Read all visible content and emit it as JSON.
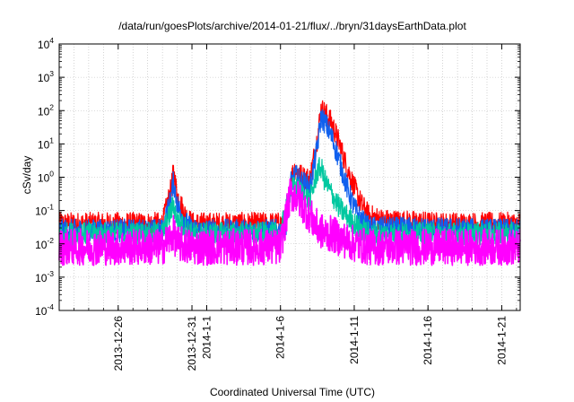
{
  "chart_data": {
    "type": "line",
    "title": "/data/run/goesPlots/archive/2014-01-21/flux/../bryn/31daysEarthData.plot",
    "xlabel": "Coordinated Universal Time (UTC)",
    "ylabel": "cSv/day",
    "yscale": "log",
    "ylim": [
      0.0001,
      10000
    ],
    "xlim": [
      "2013-12-22T00:00",
      "2014-01-22T06:00"
    ],
    "grid": true,
    "x_ticks": [
      "2013-12-26",
      "2013-12-31",
      "2014-1-1",
      "2014-1-6",
      "2014-1-11",
      "2014-1-16",
      "2014-1-21"
    ],
    "y_ticks": [
      {
        "base": "10",
        "exp": "-4"
      },
      {
        "base": "10",
        "exp": "-3"
      },
      {
        "base": "10",
        "exp": "-2"
      },
      {
        "base": "10",
        "exp": "-1"
      },
      {
        "base": "10",
        "exp": "0"
      },
      {
        "base": "10",
        "exp": "1"
      },
      {
        "base": "10",
        "exp": "2"
      },
      {
        "base": "10",
        "exp": "3"
      },
      {
        "base": "10",
        "exp": "4"
      }
    ],
    "series": [
      {
        "color": "#ff0000",
        "points": [
          [
            "2013-12-22",
            0.04
          ],
          [
            "2013-12-26",
            0.04
          ],
          [
            "2013-12-29",
            0.04
          ],
          [
            "2013-12-29T14:00",
            0.45
          ],
          [
            "2013-12-29T18:00",
            1.5
          ],
          [
            "2013-12-30",
            0.3
          ],
          [
            "2013-12-30T12:00",
            0.08
          ],
          [
            "2013-12-31",
            0.04
          ],
          [
            "2014-01-06",
            0.04
          ],
          [
            "2014-01-06T12:00",
            0.06
          ],
          [
            "2014-01-06T16:00",
            0.9
          ],
          [
            "2014-01-07",
            1.9
          ],
          [
            "2014-01-07T12:00",
            1.0
          ],
          [
            "2014-01-08",
            0.9
          ],
          [
            "2014-01-08T12:00",
            15
          ],
          [
            "2014-01-08T18:00",
            110
          ],
          [
            "2014-01-09",
            90
          ],
          [
            "2014-01-09T12:00",
            40
          ],
          [
            "2014-01-10",
            10
          ],
          [
            "2014-01-10T12:00",
            2
          ],
          [
            "2014-01-11",
            0.5
          ],
          [
            "2014-01-11T12:00",
            0.15
          ],
          [
            "2014-01-12",
            0.07
          ],
          [
            "2014-01-13",
            0.05
          ],
          [
            "2014-01-17",
            0.04
          ],
          [
            "2014-01-22T06:00",
            0.04
          ]
        ]
      },
      {
        "color": "#1060ee",
        "points": [
          [
            "2013-12-22",
            0.025
          ],
          [
            "2013-12-26",
            0.025
          ],
          [
            "2013-12-29",
            0.025
          ],
          [
            "2013-12-29T14:00",
            0.25
          ],
          [
            "2013-12-29T18:00",
            0.8
          ],
          [
            "2013-12-30",
            0.15
          ],
          [
            "2013-12-30T12:00",
            0.05
          ],
          [
            "2013-12-31",
            0.025
          ],
          [
            "2014-01-06",
            0.025
          ],
          [
            "2014-01-06T12:00",
            0.05
          ],
          [
            "2014-01-06T16:00",
            0.6
          ],
          [
            "2014-01-07",
            1.1
          ],
          [
            "2014-01-07T12:00",
            0.7
          ],
          [
            "2014-01-08",
            0.5
          ],
          [
            "2014-01-08T12:00",
            8
          ],
          [
            "2014-01-08T18:00",
            65
          ],
          [
            "2014-01-09",
            45
          ],
          [
            "2014-01-09T12:00",
            15
          ],
          [
            "2014-01-10",
            3
          ],
          [
            "2014-01-10T12:00",
            0.5
          ],
          [
            "2014-01-11",
            0.12
          ],
          [
            "2014-01-11T12:00",
            0.05
          ],
          [
            "2014-01-12",
            0.03
          ],
          [
            "2014-01-22T06:00",
            0.025
          ]
        ]
      },
      {
        "color": "#00c8a0",
        "points": [
          [
            "2013-12-22",
            0.02
          ],
          [
            "2013-12-29",
            0.02
          ],
          [
            "2013-12-29T18:00",
            0.15
          ],
          [
            "2013-12-30",
            0.05
          ],
          [
            "2013-12-31",
            0.02
          ],
          [
            "2014-01-06",
            0.02
          ],
          [
            "2014-01-06T16:00",
            0.4
          ],
          [
            "2014-01-07",
            0.5
          ],
          [
            "2014-01-08",
            0.2
          ],
          [
            "2014-01-08T12:00",
            1.5
          ],
          [
            "2014-01-08T18:00",
            2.0
          ],
          [
            "2014-01-09",
            0.8
          ],
          [
            "2014-01-09T12:00",
            0.3
          ],
          [
            "2014-01-10",
            0.12
          ],
          [
            "2014-01-11",
            0.04
          ],
          [
            "2014-01-12",
            0.02
          ],
          [
            "2014-01-22T06:00",
            0.02
          ]
        ]
      },
      {
        "color": "#ff00ff",
        "points": [
          [
            "2013-12-22",
            0.008
          ],
          [
            "2013-12-29",
            0.008
          ],
          [
            "2013-12-29T18:00",
            0.02
          ],
          [
            "2013-12-30",
            0.01
          ],
          [
            "2013-12-31",
            0.008
          ],
          [
            "2014-01-06",
            0.008
          ],
          [
            "2014-01-06T16:00",
            0.3
          ],
          [
            "2014-01-07",
            0.3
          ],
          [
            "2014-01-08",
            0.07
          ],
          [
            "2014-01-08T12:00",
            0.03
          ],
          [
            "2014-01-09",
            0.02
          ],
          [
            "2014-01-09T12:00",
            0.02
          ],
          [
            "2014-01-10",
            0.015
          ],
          [
            "2014-01-11",
            0.01
          ],
          [
            "2014-01-12",
            0.008
          ],
          [
            "2014-01-22T06:00",
            0.008
          ]
        ]
      }
    ]
  }
}
